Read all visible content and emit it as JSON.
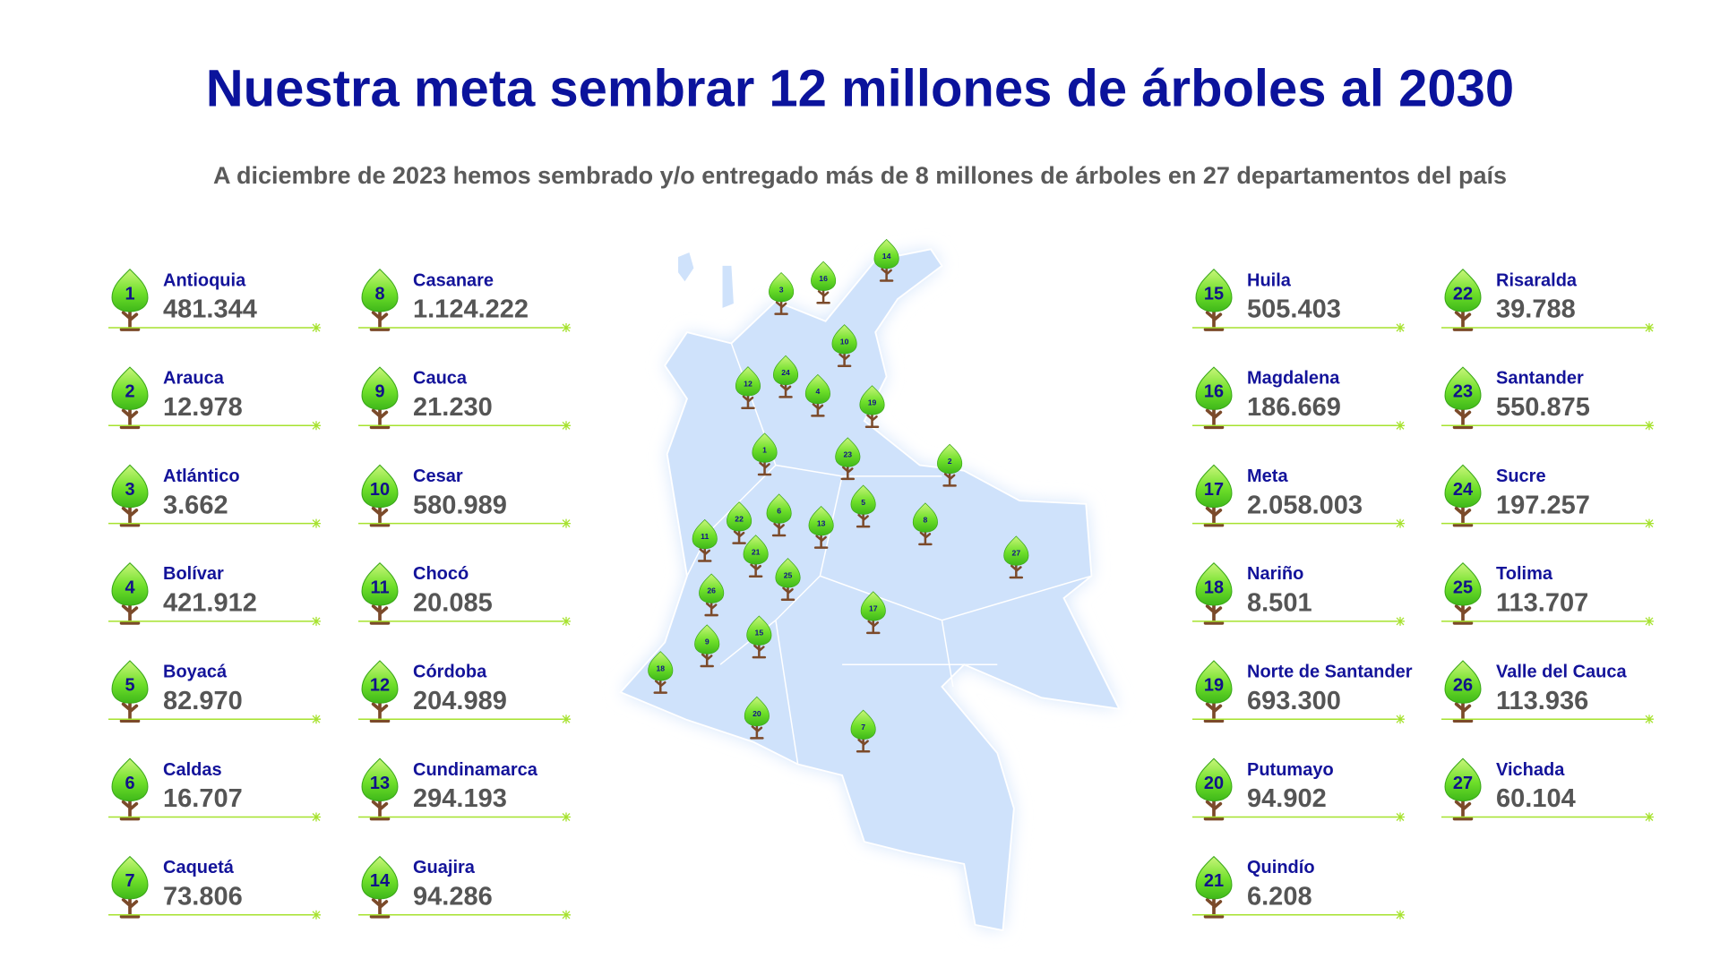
{
  "header": {
    "title": "Nuestra meta sembrar 12 millones de árboles al 2030",
    "subtitle": "A diciembre de 2023 hemos sembrado y/o entregado más de 8 millones de árboles en 27 departamentos del país"
  },
  "departments": [
    {
      "number": 1,
      "name": "Antioquia",
      "value": "481.344"
    },
    {
      "number": 2,
      "name": "Arauca",
      "value": "12.978"
    },
    {
      "number": 3,
      "name": "Atlántico",
      "value": "3.662"
    },
    {
      "number": 4,
      "name": "Bolívar",
      "value": "421.912"
    },
    {
      "number": 5,
      "name": "Boyacá",
      "value": "82.970"
    },
    {
      "number": 6,
      "name": "Caldas",
      "value": "16.707"
    },
    {
      "number": 7,
      "name": "Caquetá",
      "value": "73.806"
    },
    {
      "number": 8,
      "name": "Casanare",
      "value": "1.124.222"
    },
    {
      "number": 9,
      "name": "Cauca",
      "value": "21.230"
    },
    {
      "number": 10,
      "name": "Cesar",
      "value": "580.989"
    },
    {
      "number": 11,
      "name": "Chocó",
      "value": "20.085"
    },
    {
      "number": 12,
      "name": "Córdoba",
      "value": "204.989"
    },
    {
      "number": 13,
      "name": "Cundinamarca",
      "value": "294.193"
    },
    {
      "number": 14,
      "name": "Guajira",
      "value": "94.286"
    },
    {
      "number": 15,
      "name": "Huila",
      "value": "505.403"
    },
    {
      "number": 16,
      "name": "Magdalena",
      "value": "186.669"
    },
    {
      "number": 17,
      "name": "Meta",
      "value": "2.058.003"
    },
    {
      "number": 18,
      "name": "Nariño",
      "value": "8.501"
    },
    {
      "number": 19,
      "name": "Norte de Santander",
      "value": "693.300"
    },
    {
      "number": 20,
      "name": "Putumayo",
      "value": "94.902"
    },
    {
      "number": 21,
      "name": "Quindío",
      "value": "6.208"
    },
    {
      "number": 22,
      "name": "Risaralda",
      "value": "39.788"
    },
    {
      "number": 23,
      "name": "Santander",
      "value": "550.875"
    },
    {
      "number": 24,
      "name": "Sucre",
      "value": "197.257"
    },
    {
      "number": 25,
      "name": "Tolima",
      "value": "113.707"
    },
    {
      "number": 26,
      "name": "Valle del Cauca",
      "value": "113.936"
    },
    {
      "number": 27,
      "name": "Vichada",
      "value": "60.104"
    }
  ]
}
